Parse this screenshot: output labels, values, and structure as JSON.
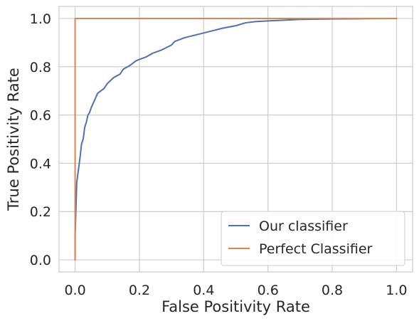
{
  "chart_data": {
    "type": "line",
    "title": "",
    "xlabel": "False Positivity Rate",
    "ylabel": "True Positivity Rate",
    "xlim": [
      -0.05,
      1.05
    ],
    "ylim": [
      -0.05,
      1.05
    ],
    "xticks": [
      "0.0",
      "0.2",
      "0.4",
      "0.6",
      "0.8",
      "1.0"
    ],
    "yticks": [
      "0.0",
      "0.2",
      "0.4",
      "0.6",
      "0.8",
      "1.0"
    ],
    "grid": true,
    "legend_position": "bottom-right",
    "series": [
      {
        "name": "Our classifier",
        "color": "#4c72b0",
        "x": [
          0.0,
          0.0,
          0.005,
          0.01,
          0.015,
          0.02,
          0.025,
          0.03,
          0.035,
          0.04,
          0.045,
          0.05,
          0.06,
          0.07,
          0.08,
          0.09,
          0.1,
          0.12,
          0.14,
          0.15,
          0.17,
          0.19,
          0.2,
          0.22,
          0.24,
          0.27,
          0.3,
          0.31,
          0.34,
          0.37,
          0.4,
          0.43,
          0.46,
          0.5,
          0.53,
          0.56,
          0.6,
          0.65,
          0.7,
          0.8,
          0.9,
          1.0
        ],
        "y": [
          0.0,
          0.1,
          0.32,
          0.37,
          0.42,
          0.48,
          0.5,
          0.55,
          0.57,
          0.6,
          0.61,
          0.63,
          0.66,
          0.69,
          0.7,
          0.71,
          0.73,
          0.755,
          0.77,
          0.79,
          0.805,
          0.825,
          0.83,
          0.84,
          0.855,
          0.87,
          0.89,
          0.905,
          0.92,
          0.93,
          0.94,
          0.95,
          0.96,
          0.97,
          0.982,
          0.987,
          0.99,
          0.993,
          0.996,
          0.998,
          0.999,
          1.0
        ]
      },
      {
        "name": "Perfect Classifier",
        "color": "#dd8452",
        "x": [
          0.0,
          0.0,
          1.0
        ],
        "y": [
          0.0,
          1.0,
          1.0
        ]
      }
    ]
  }
}
